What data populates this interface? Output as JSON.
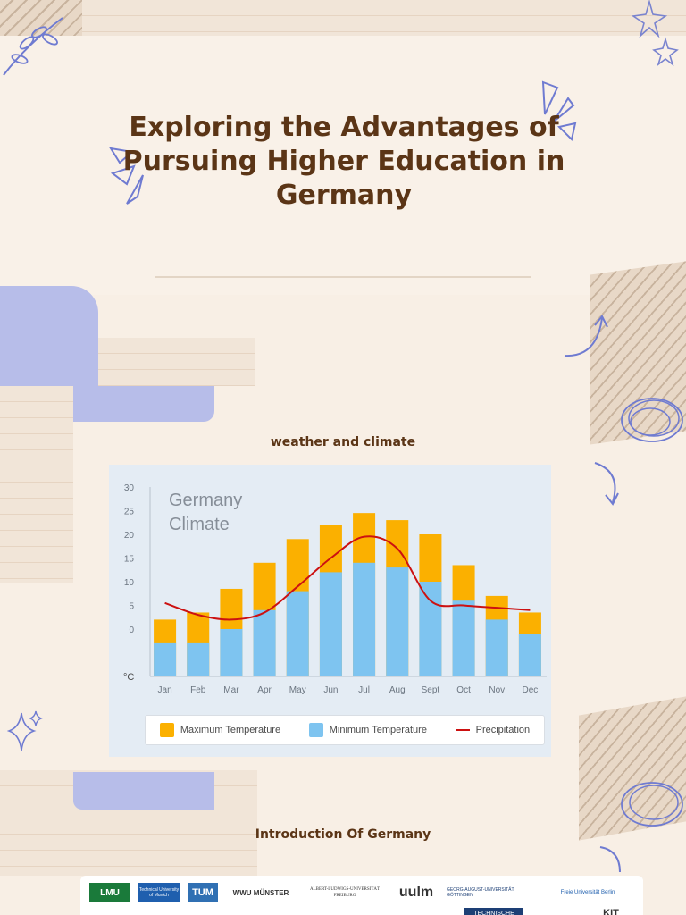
{
  "title": "Exploring the Advantages of Pursuing Higher Education in Germany",
  "section1_heading": "weather and climate",
  "section2_heading": "Introduction Of Germany",
  "chart_data": {
    "type": "bar",
    "title": "Germany Climate",
    "unit_label": "°C",
    "categories": [
      "Jan",
      "Feb",
      "Mar",
      "Apr",
      "May",
      "Jun",
      "Jul",
      "Aug",
      "Sept",
      "Oct",
      "Nov",
      "Dec"
    ],
    "ylim": [
      -10,
      30
    ],
    "yticks": [
      30,
      25,
      20,
      15,
      10,
      5,
      0
    ],
    "grid": false,
    "legend_position": "bottom",
    "series": [
      {
        "name": "Maximum Temperature",
        "type": "bar",
        "color": "#fbb000",
        "values": [
          2,
          3.5,
          8.5,
          14,
          19,
          22,
          24.5,
          23,
          20,
          13.5,
          7,
          3.5
        ]
      },
      {
        "name": "Minimum Temperature",
        "type": "bar",
        "color": "#7ec4f0",
        "values": [
          -3,
          -3,
          0,
          4,
          8,
          12,
          14,
          13,
          10,
          6,
          2,
          -1
        ]
      },
      {
        "name": "Precipitation",
        "type": "line",
        "color": "#cc1111",
        "values": [
          5.5,
          3,
          2,
          3.5,
          9,
          15,
          19.5,
          17,
          6,
          5,
          4.5,
          4
        ]
      }
    ]
  },
  "logos": {
    "row1": [
      "LMU",
      "Technical University of Munich",
      "TUM",
      "WWU MÜNSTER",
      "ALBERT-LUDWIGS-UNIVERSITÄT FREIBURG",
      "uulm",
      "GEORG-AUGUST-UNIVERSITÄT GÖTTINGEN",
      "Freie Universität Berlin"
    ],
    "row2": [
      "TECHNISCHE",
      "KIT"
    ]
  }
}
